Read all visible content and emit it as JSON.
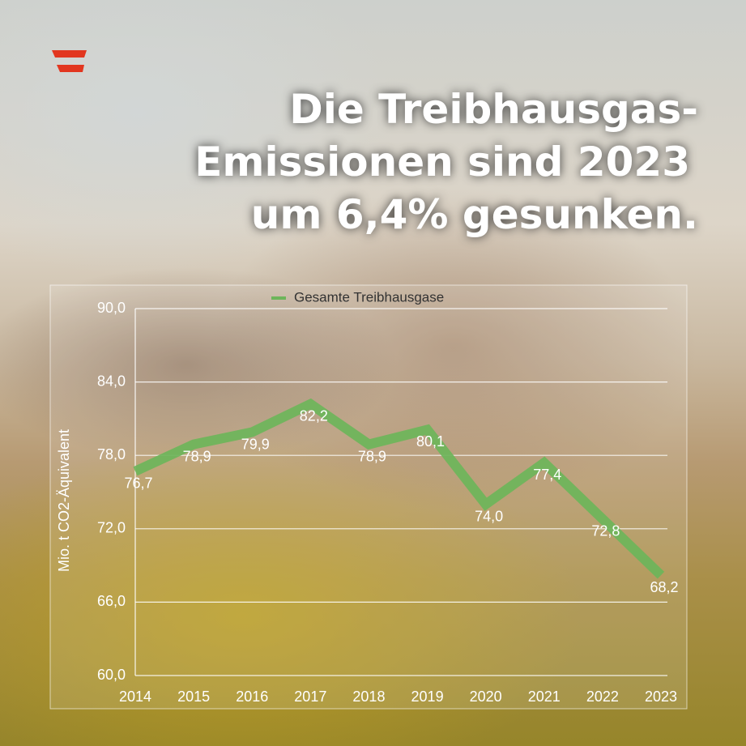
{
  "chart_data": {
    "type": "line",
    "title_lines": [
      "Die Treibhausgas-",
      "Emissionen sind 2023",
      "um 6,4% gesunken."
    ],
    "y_label": "Mio. t CO2-Äquivalent",
    "categories": [
      "2014",
      "2015",
      "2016",
      "2017",
      "2018",
      "2019",
      "2020",
      "2021",
      "2022",
      "2023"
    ],
    "series": [
      {
        "name": "Gesamte Treibhausgase",
        "color": "#6db55a",
        "values": [
          76.7,
          78.9,
          79.9,
          82.2,
          78.9,
          80.1,
          74.0,
          77.4,
          72.8,
          68.2
        ],
        "value_labels": [
          "76,7",
          "78,9",
          "79,9",
          "82,2",
          "78,9",
          "80,1",
          "74,0",
          "77,4",
          "72,8",
          "68,2"
        ]
      }
    ],
    "ylim": [
      60,
      90
    ],
    "yticks": [
      {
        "value": 60,
        "label": "60,0"
      },
      {
        "value": 66,
        "label": "66,0"
      },
      {
        "value": 72,
        "label": "72,0"
      },
      {
        "value": 78,
        "label": "78,0"
      },
      {
        "value": 84,
        "label": "84,0"
      },
      {
        "value": 90,
        "label": "90,0"
      }
    ],
    "grid": true,
    "legend": "top"
  }
}
